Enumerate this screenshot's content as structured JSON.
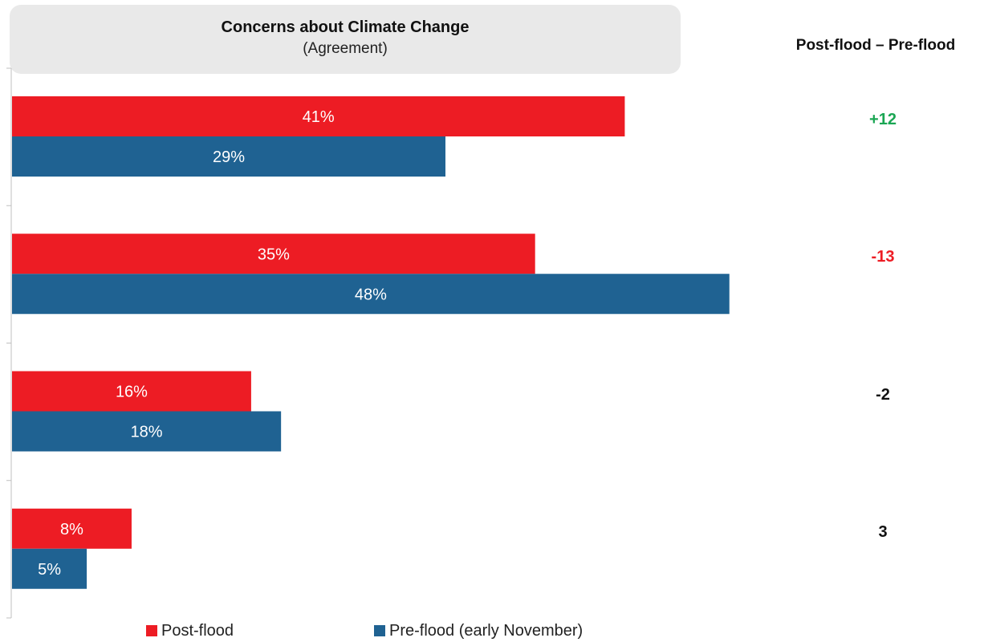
{
  "header": {
    "title": "Concerns about Climate Change",
    "subtitle": "(Agreement)",
    "diff_title": "Post-flood – Pre-flood"
  },
  "colors": {
    "post_flood": "#ed1c24",
    "pre_flood": "#1f6292",
    "positive": "#1aa653",
    "negative": "#ed1c24",
    "neutral": "#111111"
  },
  "chart_data": {
    "type": "bar",
    "orientation": "horizontal",
    "categories": [
      "",
      "",
      "",
      ""
    ],
    "series": [
      {
        "name": "Post-flood",
        "values": [
          41,
          35,
          16,
          8
        ]
      },
      {
        "name": "Pre-flood (early November)",
        "values": [
          29,
          48,
          18,
          5
        ]
      }
    ],
    "value_labels": {
      "post_flood": [
        "41%",
        "35%",
        "16%",
        "8%"
      ],
      "pre_flood": [
        "29%",
        "48%",
        "18%",
        "5%"
      ]
    },
    "xlim": [
      0,
      50
    ],
    "legend_position": "bottom",
    "grid": false
  },
  "differences": [
    {
      "label": "+12",
      "tone": "positive"
    },
    {
      "label": "-13",
      "tone": "negative"
    },
    {
      "label": "-2",
      "tone": "neutral"
    },
    {
      "label": "3",
      "tone": "neutral"
    }
  ],
  "legend": {
    "post_flood": "Post-flood",
    "pre_flood": "Pre-flood (early November)"
  }
}
